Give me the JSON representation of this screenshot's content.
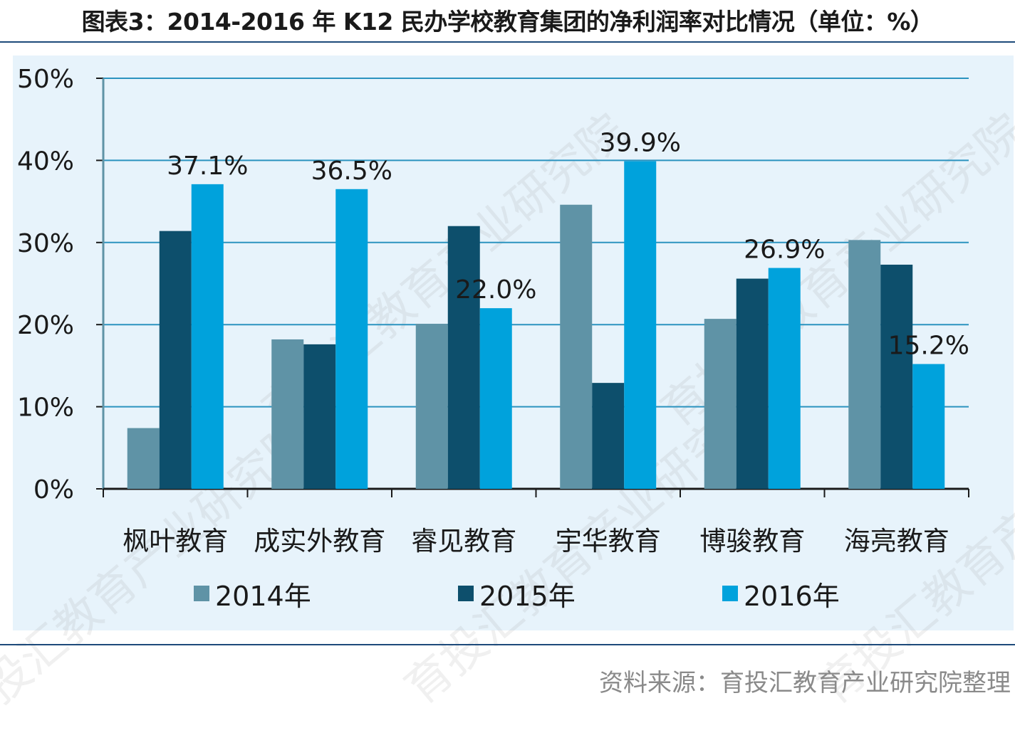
{
  "title": "图表3：2014-2016 年 K12 民办学校教育集团的净利润率对比情况（单位：%）",
  "source": "资料来源：育投汇教育产业研究院整理",
  "watermark": "育投汇教育产业研究院",
  "chart_data": {
    "type": "bar",
    "categories": [
      "枫叶教育",
      "成实外教育",
      "睿见教育",
      "宇华教育",
      "博骏教育",
      "海亮教育"
    ],
    "series": [
      {
        "name": "2014年",
        "color": "#5f93a6",
        "values": [
          7.4,
          18.2,
          20.1,
          34.6,
          20.7,
          30.3
        ]
      },
      {
        "name": "2015年",
        "color": "#0d4f6c",
        "values": [
          31.4,
          17.6,
          32.0,
          12.9,
          25.6,
          27.3
        ]
      },
      {
        "name": "2016年",
        "color": "#00a2dc",
        "values": [
          37.1,
          36.5,
          22.0,
          39.9,
          26.9,
          15.2
        ]
      }
    ],
    "data_labels": [
      "37.1%",
      "36.5%",
      "22.0%",
      "39.9%",
      "26.9%",
      "15.2%"
    ],
    "y_ticks": [
      "0%",
      "10%",
      "20%",
      "30%",
      "40%",
      "50%"
    ],
    "ylim": [
      0,
      50
    ],
    "grid": true,
    "legend_position": "bottom",
    "gridline_color": "#2b93bf"
  }
}
